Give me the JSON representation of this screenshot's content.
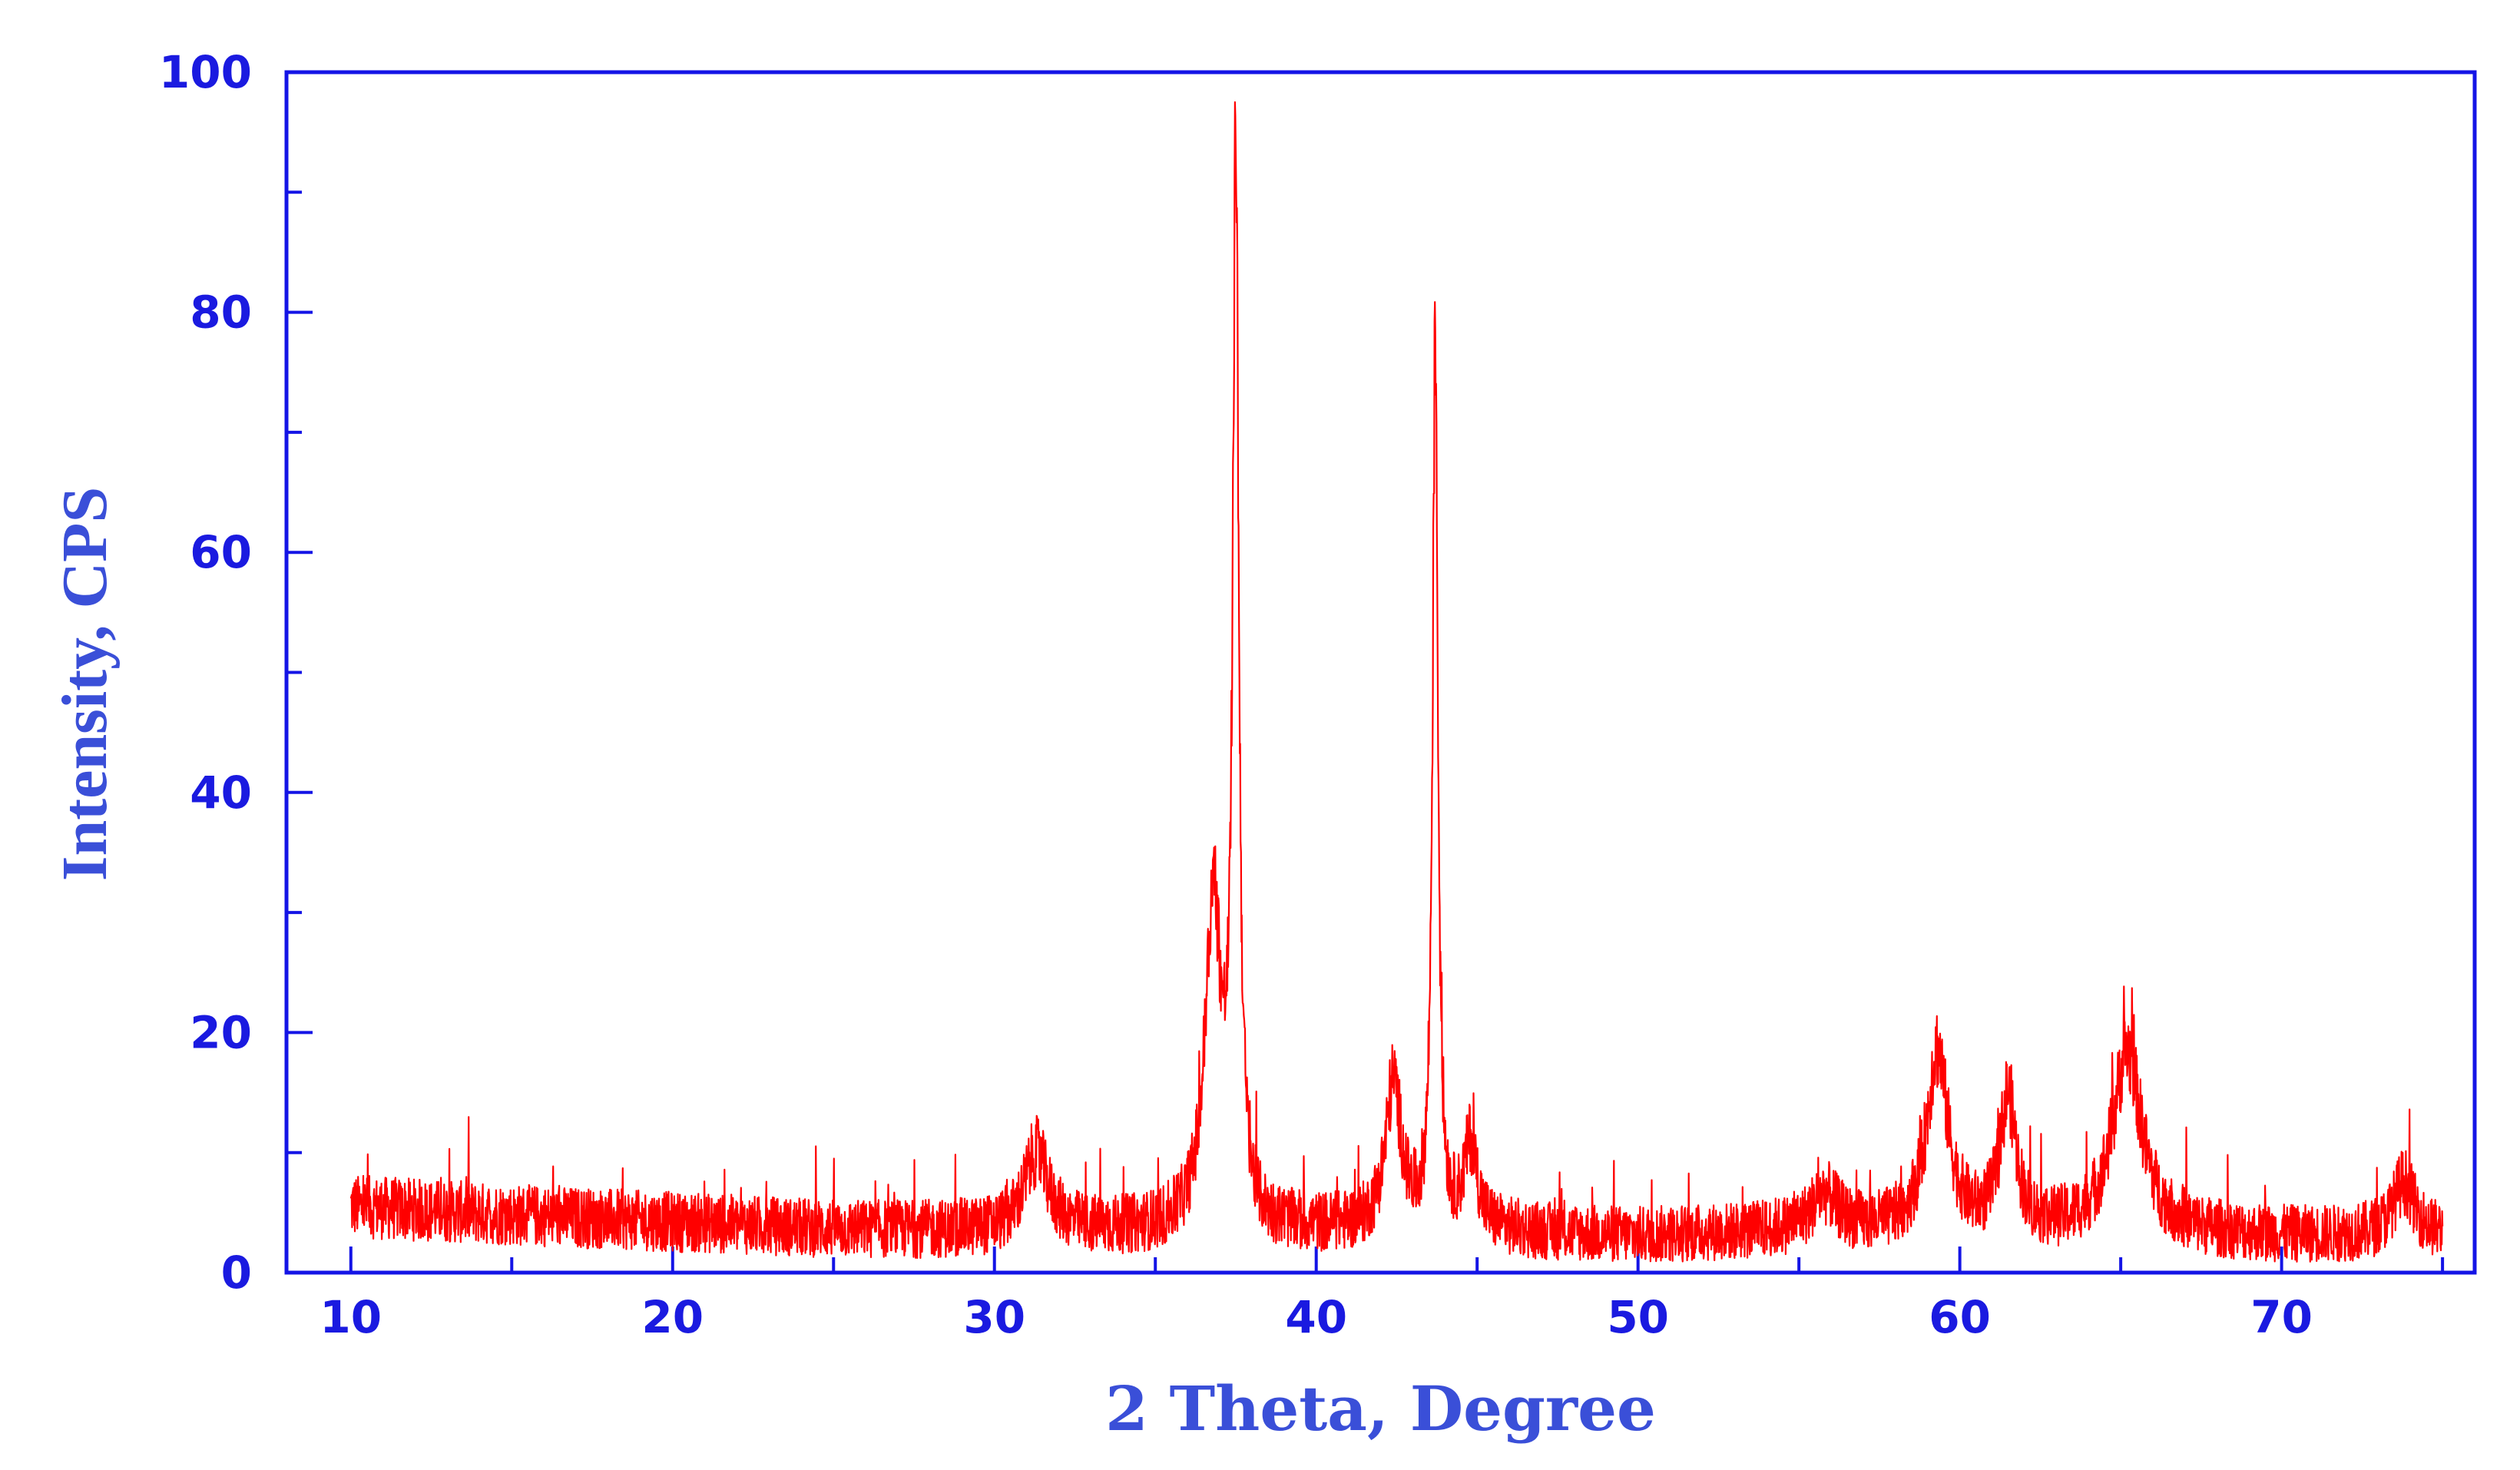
{
  "chart_data": {
    "type": "line",
    "title": "",
    "xlabel": "2 Theta, Degree",
    "ylabel": "Intensity, CPS",
    "xlim": [
      8,
      76
    ],
    "ylim": [
      0,
      100
    ],
    "x_ticks": [
      10,
      20,
      30,
      40,
      50,
      60,
      70
    ],
    "y_ticks": [
      0,
      20,
      40,
      60,
      80,
      100
    ],
    "x_minor_step": 5,
    "y_minor_step": 10,
    "grid": false,
    "legend": "none",
    "colors": {
      "axis": "#1414e6",
      "axis_text": "#1a1ae0",
      "label_text": "#3a4fd8",
      "series": "#ff0000"
    },
    "series": [
      {
        "x_range": [
          10,
          75
        ],
        "baseline": [
          [
            10,
            5.5
          ],
          [
            15,
            4.8
          ],
          [
            20,
            4.2
          ],
          [
            25,
            3.6
          ],
          [
            30,
            3.4
          ],
          [
            35,
            3.5
          ],
          [
            40,
            3.6
          ],
          [
            45,
            3.4
          ],
          [
            50,
            3.0
          ],
          [
            55,
            3.4
          ],
          [
            60,
            3.3
          ],
          [
            65,
            3.3
          ],
          [
            70,
            3.0
          ],
          [
            75,
            3.0
          ]
        ],
        "peaks": [
          {
            "x": 31.3,
            "height": 6.5,
            "fwhm": 0.9
          },
          {
            "x": 36.8,
            "height": 27,
            "fwhm": 0.6
          },
          {
            "x": 37.5,
            "height": 88,
            "fwhm": 0.22
          },
          {
            "x": 42.4,
            "height": 12,
            "fwhm": 0.6
          },
          {
            "x": 43.7,
            "height": 74,
            "fwhm": 0.2
          },
          {
            "x": 44.8,
            "height": 7,
            "fwhm": 0.5
          },
          {
            "x": 55.8,
            "height": 3,
            "fwhm": 1.0
          },
          {
            "x": 59.3,
            "height": 15,
            "fwhm": 0.8
          },
          {
            "x": 61.5,
            "height": 11,
            "fwhm": 0.6
          },
          {
            "x": 65.2,
            "height": 15,
            "fwhm": 1.1
          },
          {
            "x": 73.8,
            "height": 4.5,
            "fwhm": 0.8
          }
        ],
        "noise_amplitude": 2.6
      }
    ]
  }
}
